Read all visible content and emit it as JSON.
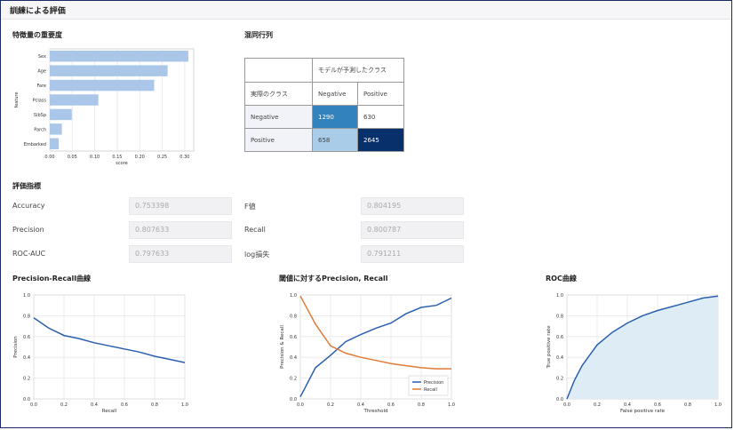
{
  "header": {
    "title": "訓練による評価"
  },
  "feature_importance": {
    "title": "特徴量の重要度",
    "chart_data": {
      "type": "bar",
      "orientation": "horizontal",
      "categories": [
        "Sex",
        "Age",
        "Fare",
        "Pclass",
        "SibSp",
        "Parch",
        "Embarked"
      ],
      "values": [
        0.308,
        0.262,
        0.232,
        0.108,
        0.049,
        0.027,
        0.02
      ],
      "xlabel": "score",
      "ylabel": "feature",
      "xlim": [
        0,
        0.32
      ],
      "xticks": [
        "0.00",
        "0.05",
        "0.10",
        "0.15",
        "0.20",
        "0.25",
        "0.30"
      ],
      "grid": true,
      "color": "#aac7ea"
    }
  },
  "confusion_matrix": {
    "title": "混同行列",
    "predicted_header": "モデルが予測したクラス",
    "actual_header": "実際のクラス",
    "col_labels": [
      "Negative",
      "Positive"
    ],
    "rows": [
      {
        "label": "Negative",
        "values": [
          "1290",
          "630"
        ]
      },
      {
        "label": "Positive",
        "values": [
          "658",
          "2645"
        ]
      }
    ],
    "colors": {
      "tn": "#3182bd",
      "fp": "#ffffff",
      "fn": "#a9cce8",
      "tp": "#08306b",
      "header_bg": "#f1f3f8"
    }
  },
  "metrics": {
    "title": "評価指標",
    "left": [
      {
        "label": "Accuracy",
        "value": "0.753398"
      },
      {
        "label": "Precision",
        "value": "0.807633"
      },
      {
        "label": "ROC-AUC",
        "value": "0.797633"
      }
    ],
    "right": [
      {
        "label": "F値",
        "value": "0.804195"
      },
      {
        "label": "Recall",
        "value": "0.800787"
      },
      {
        "label": "log損失",
        "value": "0.791211"
      }
    ]
  },
  "pr_curve": {
    "title": "Precision-Recall曲線",
    "chart_data": {
      "type": "line",
      "x": [
        0.0,
        0.1,
        0.2,
        0.3,
        0.4,
        0.5,
        0.6,
        0.7,
        0.8,
        0.9,
        1.0
      ],
      "series": [
        {
          "values": [
            0.78,
            0.68,
            0.61,
            0.58,
            0.54,
            0.51,
            0.48,
            0.45,
            0.41,
            0.38,
            0.35
          ],
          "color": "#2a5fb0"
        }
      ],
      "xlabel": "Recall",
      "ylabel": "Precision",
      "xlim": [
        0,
        1
      ],
      "ylim": [
        0,
        1
      ],
      "ticks": [
        "0.0",
        "0.2",
        "0.4",
        "0.6",
        "0.8",
        "1.0"
      ],
      "grid": true
    }
  },
  "threshold_curve": {
    "title": "閾値に対するPrecision, Recall",
    "chart_data": {
      "type": "line",
      "x": [
        0.0,
        0.1,
        0.2,
        0.3,
        0.4,
        0.5,
        0.6,
        0.7,
        0.8,
        0.9,
        1.0
      ],
      "series": [
        {
          "name": "Precision",
          "values": [
            0.02,
            0.3,
            0.42,
            0.55,
            0.62,
            0.68,
            0.73,
            0.82,
            0.88,
            0.9,
            0.97
          ],
          "color": "#2a5fb0"
        },
        {
          "name": "Recall",
          "values": [
            0.99,
            0.72,
            0.51,
            0.44,
            0.4,
            0.37,
            0.34,
            0.32,
            0.3,
            0.29,
            0.29
          ],
          "color": "#e07b39"
        }
      ],
      "xlabel": "Threshold",
      "ylabel": "Precision & Recall",
      "xlim": [
        0,
        1
      ],
      "ylim": [
        0,
        1
      ],
      "ticks": [
        "0.0",
        "0.2",
        "0.4",
        "0.6",
        "0.8",
        "1.0"
      ],
      "legend": "bottom-right",
      "grid": true
    }
  },
  "roc_curve": {
    "title": "ROC曲線",
    "chart_data": {
      "type": "area",
      "x": [
        0.0,
        0.05,
        0.1,
        0.2,
        0.3,
        0.4,
        0.5,
        0.6,
        0.7,
        0.8,
        0.9,
        1.0
      ],
      "series": [
        {
          "values": [
            0.0,
            0.18,
            0.32,
            0.52,
            0.64,
            0.73,
            0.8,
            0.85,
            0.89,
            0.93,
            0.97,
            0.99
          ],
          "color": "#2a5fb0",
          "fill": "#deedf5"
        }
      ],
      "xlabel": "False positive rate",
      "ylabel": "True positive rate",
      "xlim": [
        0,
        1
      ],
      "ylim": [
        0,
        1
      ],
      "ticks": [
        "0.0",
        "0.2",
        "0.4",
        "0.6",
        "0.8",
        "1.0"
      ],
      "grid": true
    }
  }
}
